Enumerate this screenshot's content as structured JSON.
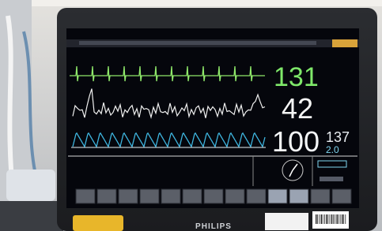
{
  "monitor": {
    "brand": "PHILIPS",
    "heart_rate": "131",
    "resp_rate": "42",
    "spo2": "100",
    "pulse_rate": "137",
    "perfusion_index": "2.0"
  }
}
